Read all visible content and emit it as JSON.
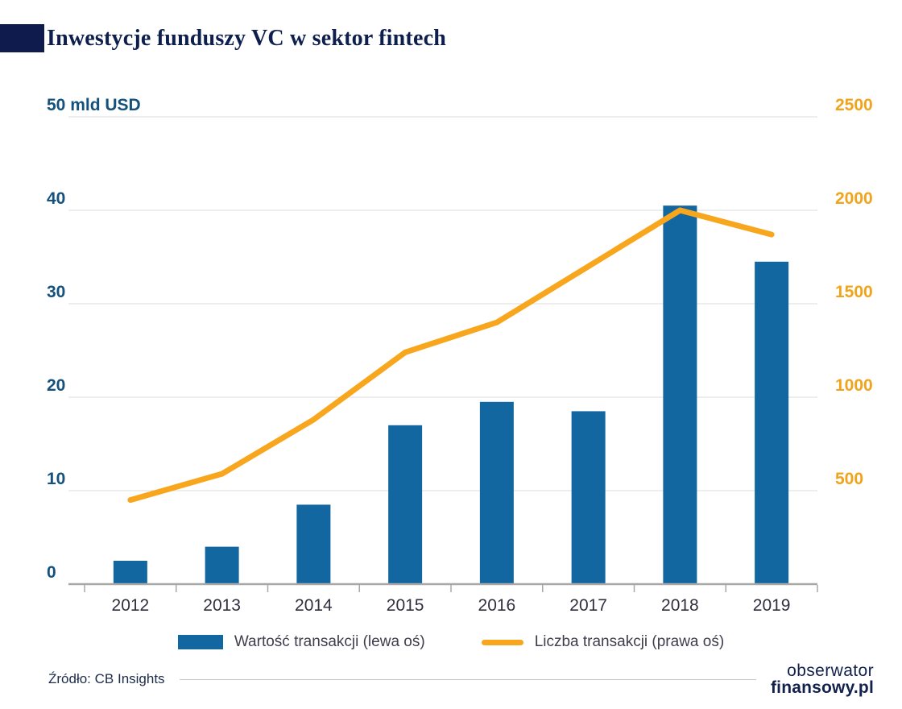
{
  "header": {
    "title": "Inwestycje funduszy VC w sektor fintech"
  },
  "colors": {
    "bar": "#1367a0",
    "line": "#f8a61d",
    "navy": "#0e1e4e",
    "grid": "#dcdcdc",
    "axis_line": "#a8a8a8",
    "left_axis_text": "#14527d",
    "right_axis_text": "#f0a41c",
    "year_text": "#30303f"
  },
  "chart_data": {
    "type": "bar",
    "subtype": "bar+line dual axis",
    "categories": [
      "2012",
      "2013",
      "2014",
      "2015",
      "2016",
      "2017",
      "2018",
      "2019"
    ],
    "series": [
      {
        "name": "Wartość transakcji (lewa oś)",
        "type": "bar",
        "axis": "left",
        "values": [
          2.5,
          4,
          8.5,
          17,
          19.5,
          18.5,
          40.5,
          34.5
        ]
      },
      {
        "name": "Liczba transakcji (prawa oś)",
        "type": "line",
        "axis": "right",
        "values": [
          450,
          590,
          880,
          1240,
          1400,
          1700,
          2000,
          1870
        ]
      }
    ],
    "left_axis": {
      "unit": "mld USD",
      "range": [
        0,
        50
      ],
      "tick_values": [
        0,
        10,
        20,
        30,
        40,
        50
      ],
      "tick_labels": [
        "0",
        "10",
        "20",
        "30",
        "40",
        "50 mld USD"
      ]
    },
    "right_axis": {
      "range": [
        0,
        2500
      ],
      "tick_values": [
        500,
        1000,
        1500,
        2000,
        2500
      ],
      "tick_labels": [
        "500",
        "1000",
        "1500",
        "2000",
        "2500"
      ]
    },
    "grid": true,
    "legend_position": "bottom",
    "title": "Inwestycje funduszy VC w sektor fintech"
  },
  "legend": {
    "items": [
      {
        "label": "Wartość transakcji (lewa oś)"
      },
      {
        "label": "Liczba transakcji (prawa oś)"
      }
    ]
  },
  "footer": {
    "source": "Źródło: CB Insights",
    "logo": {
      "line1": "obserwator",
      "line2": "finansowy.pl"
    }
  }
}
